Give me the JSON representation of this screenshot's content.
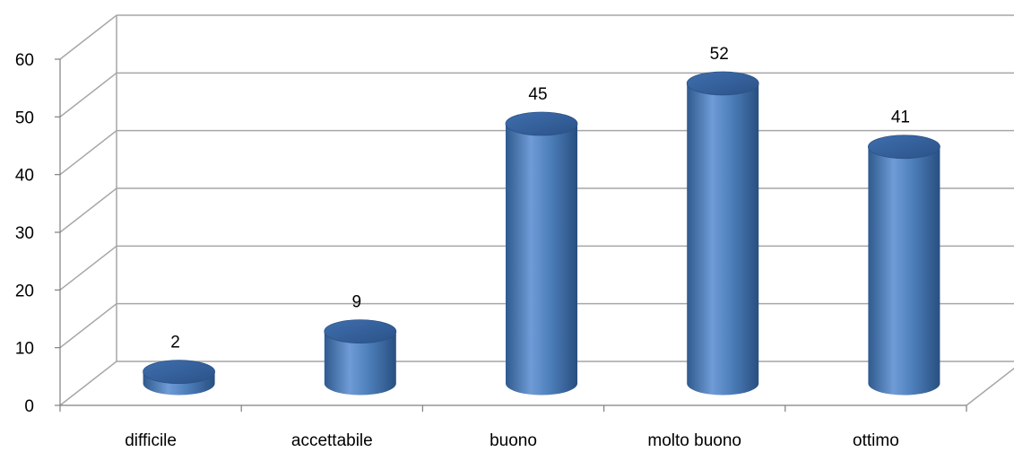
{
  "chart_data": {
    "type": "bar",
    "style": "3d-cylinder",
    "categories": [
      "difficile",
      "accettabile",
      "buono",
      "molto buono",
      "ottimo"
    ],
    "values": [
      2,
      9,
      45,
      52,
      41
    ],
    "data_labels": [
      "2",
      "9",
      "45",
      "52",
      "41"
    ],
    "title": "",
    "xlabel": "",
    "ylabel": "",
    "ylim": [
      0,
      60
    ],
    "yticks": [
      "0",
      "10",
      "20",
      "30",
      "40",
      "50",
      "60"
    ],
    "grid": true,
    "legend": "none",
    "colors": {
      "bar": "#4F81BD",
      "bar_dark": "#2E5A8E",
      "bar_light": "#7FA7DA",
      "grid": "#A6A6A6",
      "axis": "#7F7F7F"
    }
  }
}
